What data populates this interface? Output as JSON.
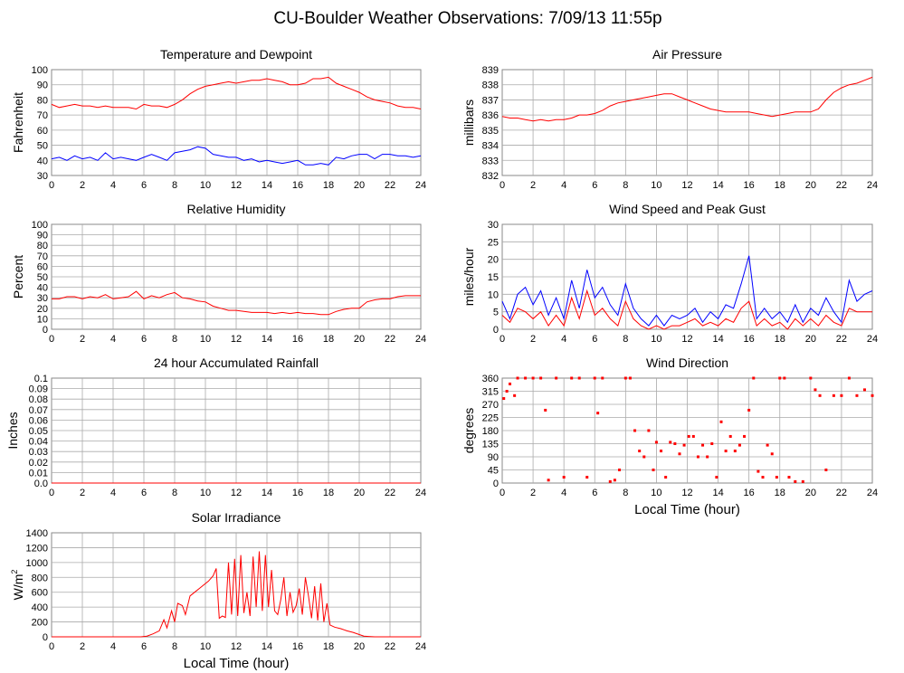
{
  "title": "CU-Boulder Weather Observations: 7/09/13 11:55p",
  "colors": {
    "red": "#ff0000",
    "blue": "#0000ff",
    "grid": "#aaaaaa"
  },
  "chart_data": [
    {
      "id": "temp",
      "type": "line",
      "title": "Temperature and Dewpoint",
      "xlabel": "",
      "ylabel": "Fahrenheit",
      "xlim": [
        0,
        24
      ],
      "ylim": [
        30,
        100
      ],
      "xticks": [
        "0",
        "2",
        "4",
        "6",
        "8",
        "10",
        "12",
        "14",
        "16",
        "18",
        "20",
        "22",
        "24"
      ],
      "yticks": [
        "30",
        "40",
        "50",
        "60",
        "70",
        "80",
        "90",
        "100"
      ],
      "grid": true,
      "series": [
        {
          "color": "#ff0000",
          "x": [
            0,
            0.5,
            1,
            1.5,
            2,
            2.5,
            3,
            3.5,
            4,
            4.5,
            5,
            5.5,
            6,
            6.5,
            7,
            7.5,
            8,
            8.5,
            9,
            9.5,
            10,
            10.5,
            11,
            11.5,
            12,
            12.5,
            13,
            13.5,
            14,
            14.5,
            15,
            15.5,
            16,
            16.5,
            17,
            17.5,
            18,
            18.5,
            19,
            19.5,
            20,
            20.5,
            21,
            21.5,
            22,
            22.5,
            23,
            23.5,
            24
          ],
          "y": [
            77,
            75,
            76,
            77,
            76,
            76,
            75,
            76,
            75,
            75,
            75,
            74,
            77,
            76,
            76,
            75,
            77,
            80,
            84,
            87,
            89,
            90,
            91,
            92,
            91,
            92,
            93,
            93,
            94,
            93,
            92,
            90,
            90,
            91,
            94,
            94,
            95,
            91,
            89,
            87,
            85,
            82,
            80,
            79,
            78,
            76,
            75,
            75,
            74
          ]
        },
        {
          "color": "#0000ff",
          "x": [
            0,
            0.5,
            1,
            1.5,
            2,
            2.5,
            3,
            3.5,
            4,
            4.5,
            5,
            5.5,
            6,
            6.5,
            7,
            7.5,
            8,
            8.5,
            9,
            9.5,
            10,
            10.5,
            11,
            11.5,
            12,
            12.5,
            13,
            13.5,
            14,
            14.5,
            15,
            15.5,
            16,
            16.5,
            17,
            17.5,
            18,
            18.5,
            19,
            19.5,
            20,
            20.5,
            21,
            21.5,
            22,
            22.5,
            23,
            23.5,
            24
          ],
          "y": [
            41,
            42,
            40,
            43,
            41,
            42,
            40,
            45,
            41,
            42,
            41,
            40,
            42,
            44,
            42,
            40,
            45,
            46,
            47,
            49,
            48,
            44,
            43,
            42,
            42,
            40,
            41,
            39,
            40,
            39,
            38,
            39,
            40,
            37,
            37,
            38,
            37,
            42,
            41,
            43,
            44,
            44,
            41,
            44,
            44,
            43,
            43,
            42,
            43
          ]
        }
      ]
    },
    {
      "id": "pressure",
      "type": "line",
      "title": "Air Pressure",
      "xlabel": "",
      "ylabel": "millibars",
      "xlim": [
        0,
        24
      ],
      "ylim": [
        832,
        839
      ],
      "xticks": [
        "0",
        "2",
        "4",
        "6",
        "8",
        "10",
        "12",
        "14",
        "16",
        "18",
        "20",
        "22",
        "24"
      ],
      "yticks": [
        "832",
        "833",
        "834",
        "835",
        "836",
        "837",
        "838",
        "839"
      ],
      "grid": true,
      "series": [
        {
          "color": "#ff0000",
          "x": [
            0,
            0.5,
            1,
            1.5,
            2,
            2.5,
            3,
            3.5,
            4,
            4.5,
            5,
            5.5,
            6,
            6.5,
            7,
            7.5,
            8,
            8.5,
            9,
            9.5,
            10,
            10.5,
            11,
            11.5,
            12,
            12.5,
            13,
            13.5,
            14,
            14.5,
            15,
            15.5,
            16,
            16.5,
            17,
            17.5,
            18,
            18.5,
            19,
            19.5,
            20,
            20.5,
            21,
            21.5,
            22,
            22.5,
            23,
            23.5,
            24
          ],
          "y": [
            835.9,
            835.8,
            835.8,
            835.7,
            835.6,
            835.7,
            835.6,
            835.7,
            835.7,
            835.8,
            836.0,
            836.0,
            836.1,
            836.3,
            836.6,
            836.8,
            836.9,
            837.0,
            837.1,
            837.2,
            837.3,
            837.4,
            837.4,
            837.2,
            837.0,
            836.8,
            836.6,
            836.4,
            836.3,
            836.2,
            836.2,
            836.2,
            836.2,
            836.1,
            836.0,
            835.9,
            836.0,
            836.1,
            836.2,
            836.2,
            836.2,
            836.4,
            837.0,
            837.5,
            837.8,
            838.0,
            838.1,
            838.3,
            838.5
          ]
        }
      ]
    },
    {
      "id": "humidity",
      "type": "line",
      "title": "Relative Humidity",
      "xlabel": "",
      "ylabel": "Percent",
      "xlim": [
        0,
        24
      ],
      "ylim": [
        0,
        100
      ],
      "xticks": [
        "0",
        "2",
        "4",
        "6",
        "8",
        "10",
        "12",
        "14",
        "16",
        "18",
        "20",
        "22",
        "24"
      ],
      "yticks": [
        "0",
        "10",
        "20",
        "30",
        "40",
        "50",
        "60",
        "70",
        "80",
        "90",
        "100"
      ],
      "grid": true,
      "series": [
        {
          "color": "#ff0000",
          "x": [
            0,
            0.5,
            1,
            1.5,
            2,
            2.5,
            3,
            3.5,
            4,
            4.5,
            5,
            5.5,
            6,
            6.5,
            7,
            7.5,
            8,
            8.5,
            9,
            9.5,
            10,
            10.5,
            11,
            11.5,
            12,
            12.5,
            13,
            13.5,
            14,
            14.5,
            15,
            15.5,
            16,
            16.5,
            17,
            17.5,
            18,
            18.5,
            19,
            19.5,
            20,
            20.5,
            21,
            21.5,
            22,
            22.5,
            23,
            23.5,
            24
          ],
          "y": [
            29,
            29,
            31,
            31,
            29,
            31,
            30,
            33,
            29,
            30,
            31,
            36,
            29,
            32,
            30,
            33,
            35,
            30,
            29,
            27,
            26,
            22,
            20,
            18,
            18,
            17,
            16,
            16,
            16,
            15,
            16,
            15,
            16,
            15,
            15,
            14,
            14,
            17,
            19,
            20,
            20,
            26,
            28,
            29,
            29,
            31,
            32,
            32,
            32
          ]
        }
      ]
    },
    {
      "id": "wind",
      "type": "line",
      "title": "Wind Speed and Peak Gust",
      "xlabel": "",
      "ylabel": "miles/hour",
      "xlim": [
        0,
        24
      ],
      "ylim": [
        0,
        30
      ],
      "xticks": [
        "0",
        "2",
        "4",
        "6",
        "8",
        "10",
        "12",
        "14",
        "16",
        "18",
        "20",
        "22",
        "24"
      ],
      "yticks": [
        "0",
        "5",
        "10",
        "15",
        "20",
        "25",
        "30"
      ],
      "grid": true,
      "series": [
        {
          "color": "#0000ff",
          "x": [
            0,
            0.5,
            1,
            1.5,
            2,
            2.5,
            3,
            3.5,
            4,
            4.5,
            5,
            5.5,
            6,
            6.5,
            7,
            7.5,
            8,
            8.5,
            9,
            9.5,
            10,
            10.5,
            11,
            11.5,
            12,
            12.5,
            13,
            13.5,
            14,
            14.5,
            15,
            15.5,
            16,
            16.5,
            17,
            17.5,
            18,
            18.5,
            19,
            19.5,
            20,
            20.5,
            21,
            21.5,
            22,
            22.5,
            23,
            23.5,
            24
          ],
          "y": [
            8,
            3,
            10,
            12,
            7,
            11,
            4,
            9,
            3,
            14,
            6,
            17,
            9,
            12,
            7,
            4,
            13,
            6,
            3,
            1,
            4,
            1,
            4,
            3,
            4,
            6,
            2,
            5,
            3,
            7,
            6,
            13,
            21,
            3,
            6,
            3,
            5,
            2,
            7,
            2,
            6,
            4,
            9,
            5,
            2,
            14,
            8,
            10,
            11
          ]
        },
        {
          "color": "#ff0000",
          "x": [
            0,
            0.5,
            1,
            1.5,
            2,
            2.5,
            3,
            3.5,
            4,
            4.5,
            5,
            5.5,
            6,
            6.5,
            7,
            7.5,
            8,
            8.5,
            9,
            9.5,
            10,
            10.5,
            11,
            11.5,
            12,
            12.5,
            13,
            13.5,
            14,
            14.5,
            15,
            15.5,
            16,
            16.5,
            17,
            17.5,
            18,
            18.5,
            19,
            19.5,
            20,
            20.5,
            21,
            21.5,
            22,
            22.5,
            23,
            23.5,
            24
          ],
          "y": [
            4,
            2,
            6,
            5,
            3,
            5,
            1,
            4,
            1,
            9,
            3,
            11,
            4,
            6,
            3,
            1,
            8,
            3,
            1,
            0,
            1,
            0,
            1,
            1,
            2,
            3,
            1,
            2,
            1,
            3,
            2,
            6,
            8,
            1,
            3,
            1,
            2,
            0,
            3,
            1,
            3,
            1,
            4,
            2,
            1,
            6,
            5,
            5,
            5
          ]
        }
      ]
    },
    {
      "id": "rain",
      "type": "line",
      "title": "24 hour Accumulated Rainfall",
      "xlabel": "",
      "ylabel": "Inches",
      "xlim": [
        0,
        24
      ],
      "ylim": [
        0,
        0.1
      ],
      "xticks": [
        "0",
        "2",
        "4",
        "6",
        "8",
        "10",
        "12",
        "14",
        "16",
        "18",
        "20",
        "22",
        "24"
      ],
      "yticks": [
        "0.0",
        "0.01",
        "0.02",
        "0.03",
        "0.04",
        "0.05",
        "0.06",
        "0.07",
        "0.08",
        "0.09",
        "0.1"
      ],
      "grid": true,
      "series": [
        {
          "color": "#ff0000",
          "x": [
            0,
            24
          ],
          "y": [
            0,
            0
          ]
        }
      ]
    },
    {
      "id": "winddir",
      "type": "scatter",
      "title": "Wind Direction",
      "xlabel": "Local Time (hour)",
      "ylabel": "degrees",
      "xlim": [
        0,
        24
      ],
      "ylim": [
        0,
        360
      ],
      "xticks": [
        "0",
        "2",
        "4",
        "6",
        "8",
        "10",
        "12",
        "14",
        "16",
        "18",
        "20",
        "22",
        "24"
      ],
      "yticks": [
        "0",
        "45",
        "90",
        "135",
        "180",
        "225",
        "270",
        "315",
        "360"
      ],
      "grid": true,
      "series": [
        {
          "color": "#ff0000",
          "x": [
            0.1,
            0.3,
            0.5,
            0.8,
            1,
            1.5,
            2,
            2.5,
            2.8,
            3,
            3.5,
            4,
            4.5,
            5,
            5.5,
            6,
            6.2,
            6.5,
            7,
            7.3,
            7.6,
            8,
            8.3,
            8.6,
            8.9,
            9.2,
            9.5,
            9.8,
            10,
            10.3,
            10.6,
            10.9,
            11.2,
            11.5,
            11.8,
            12.1,
            12.4,
            12.7,
            13,
            13.3,
            13.6,
            13.9,
            14.2,
            14.5,
            14.8,
            15.1,
            15.4,
            15.7,
            16,
            16.3,
            16.6,
            16.9,
            17.2,
            17.5,
            17.8,
            18,
            18.3,
            18.6,
            19,
            19.5,
            20,
            20.3,
            20.6,
            21,
            21.5,
            22,
            22.5,
            23,
            23.5,
            24
          ],
          "y": [
            290,
            315,
            340,
            300,
            360,
            360,
            360,
            360,
            250,
            10,
            360,
            20,
            360,
            360,
            20,
            360,
            240,
            360,
            5,
            10,
            45,
            360,
            360,
            180,
            110,
            90,
            180,
            45,
            140,
            110,
            20,
            140,
            135,
            100,
            130,
            160,
            160,
            90,
            130,
            90,
            135,
            20,
            210,
            110,
            160,
            110,
            130,
            160,
            250,
            360,
            40,
            20,
            130,
            100,
            20,
            360,
            360,
            20,
            5,
            5,
            360,
            320,
            300,
            45,
            300,
            300,
            360,
            300,
            320,
            300
          ]
        }
      ]
    },
    {
      "id": "solar",
      "type": "line",
      "title": "Solar Irradiance",
      "xlabel": "Local Time (hour)",
      "ylabel": "W/m2",
      "xlim": [
        0,
        24
      ],
      "ylim": [
        0,
        1400
      ],
      "xticks": [
        "0",
        "2",
        "4",
        "6",
        "8",
        "10",
        "12",
        "14",
        "16",
        "18",
        "20",
        "22",
        "24"
      ],
      "yticks": [
        "0",
        "200",
        "400",
        "600",
        "800",
        "1000",
        "1200",
        "1400"
      ],
      "grid": true,
      "series": [
        {
          "color": "#ff0000",
          "x": [
            0,
            5.8,
            6.2,
            6.6,
            7,
            7.3,
            7.5,
            7.8,
            8,
            8.2,
            8.5,
            8.7,
            9,
            9.3,
            9.6,
            9.9,
            10.2,
            10.5,
            10.7,
            10.9,
            11.1,
            11.3,
            11.5,
            11.7,
            11.9,
            12.1,
            12.3,
            12.5,
            12.7,
            12.9,
            13.1,
            13.3,
            13.5,
            13.7,
            13.9,
            14.1,
            14.3,
            14.5,
            14.7,
            14.9,
            15.1,
            15.3,
            15.5,
            15.7,
            15.9,
            16.1,
            16.3,
            16.5,
            16.7,
            16.9,
            17.1,
            17.3,
            17.5,
            17.7,
            17.9,
            18.1,
            18.4,
            18.8,
            19.2,
            19.6,
            20,
            20.3,
            20.6,
            21,
            24
          ],
          "y": [
            0,
            0,
            10,
            40,
            80,
            230,
            120,
            350,
            200,
            450,
            420,
            300,
            550,
            600,
            650,
            700,
            750,
            820,
            920,
            250,
            280,
            260,
            1000,
            300,
            1050,
            280,
            1100,
            320,
            600,
            280,
            1080,
            400,
            1150,
            350,
            1100,
            400,
            900,
            350,
            300,
            500,
            800,
            280,
            600,
            330,
            420,
            650,
            300,
            800,
            550,
            250,
            680,
            220,
            720,
            200,
            450,
            160,
            130,
            110,
            80,
            60,
            30,
            10,
            5,
            0,
            0
          ]
        }
      ]
    }
  ]
}
